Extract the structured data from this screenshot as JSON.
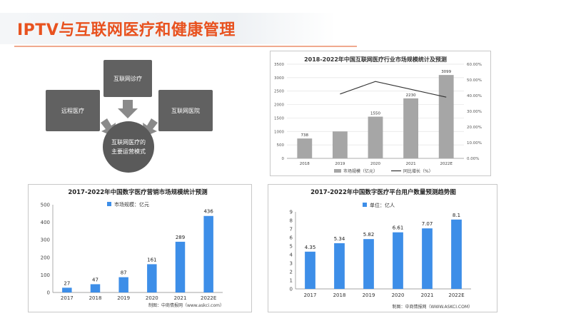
{
  "title": "IPTV与互联网医疗和健康管理",
  "colors": {
    "accent": "#e8521f",
    "bar_light": "#3d8ee8",
    "bar_gray": "#a6a6a6",
    "node": "#616161"
  },
  "diagram": {
    "top": "互联网诊疗",
    "left": "远程医疗",
    "right": "互联网医院",
    "center_line1": "互联网医疗的",
    "center_line2": "主要运营模式"
  },
  "chart_data": [
    {
      "type": "bar",
      "title": "2018-2022年中国互联网医疗行业市场规模统计及预测",
      "categories": [
        "2018",
        "2019",
        "2020",
        "2021",
        "2022E"
      ],
      "series": [
        {
          "name": "市场规模（亿元）",
          "values": [
            738,
            1000,
            1550,
            2230,
            3099
          ],
          "labels": [
            "738",
            "",
            "1550",
            "2230",
            "3099"
          ]
        },
        {
          "name": "同比增长（%）",
          "type": "line",
          "values": [
            null,
            41,
            49,
            44,
            39
          ]
        }
      ],
      "y_ticks": [
        "0",
        "500",
        "1000",
        "1500",
        "2000",
        "2500",
        "3000",
        "3500"
      ],
      "y2_ticks": [
        "0.00%",
        "10.00%",
        "20.00%",
        "30.00%",
        "40.00%",
        "50.00%",
        "60.00%"
      ],
      "ylim": [
        0,
        3500
      ],
      "y2lim": [
        0,
        60
      ],
      "grid": true,
      "legend": "bottom"
    },
    {
      "type": "bar",
      "title": "2017-2022年中国数字医疗营销市场规模统计预测",
      "categories": [
        "2017",
        "2018",
        "2019",
        "2020",
        "2021",
        "2022E"
      ],
      "series": [
        {
          "name": "市场规模：亿元",
          "values": [
            27,
            47,
            87,
            161,
            289,
            436
          ]
        }
      ],
      "y_ticks": [
        "0",
        "100",
        "200",
        "300",
        "400",
        "500"
      ],
      "ylim": [
        0,
        500
      ],
      "legend": "top",
      "source": "制图：中商情报网（www.askci.com）"
    },
    {
      "type": "bar",
      "title": "2017-2022年中国数字医疗平台用户数量预测趋势图",
      "categories": [
        "2017",
        "2018",
        "2019",
        "2020",
        "2021",
        "2022E"
      ],
      "series": [
        {
          "name": "单位：亿人",
          "values": [
            4.35,
            5.34,
            5.82,
            6.61,
            7.07,
            8.1
          ],
          "labels": [
            "4.35",
            "5.34",
            "5.82",
            "6.61",
            "7.07",
            "8.1"
          ]
        }
      ],
      "y_ticks": [
        "0",
        "1",
        "2",
        "3",
        "4",
        "5",
        "6",
        "7",
        "8",
        "9"
      ],
      "ylim": [
        0,
        9
      ],
      "legend": "top",
      "source": "制图：中商情报网（WWW.ASKCI.COM）"
    }
  ]
}
